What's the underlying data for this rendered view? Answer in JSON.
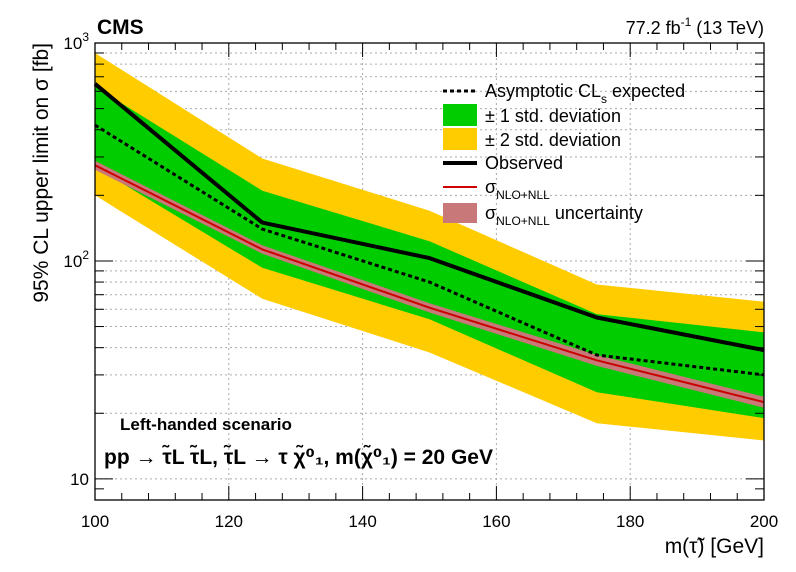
{
  "header": {
    "experiment": "CMS",
    "lumi_value": "77.2 fb",
    "lumi_exp": "-1",
    "energy": "(13 TeV)"
  },
  "chart_data": {
    "type": "line",
    "title": "",
    "xlabel": "m(τ̃) [GeV]",
    "ylabel": "95% CL upper limit on σ [fb]",
    "xlim": [
      100,
      200
    ],
    "ylim": [
      8,
      1000
    ],
    "yscale": "log",
    "grid": true,
    "legend_position": "top-right",
    "x_ticks": [
      "100",
      "120",
      "140",
      "160",
      "180",
      "200"
    ],
    "y_ticks": [
      {
        "mantissa": "10",
        "exp": ""
      },
      {
        "mantissa": "10",
        "exp": "2"
      },
      {
        "mantissa": "10",
        "exp": "3"
      }
    ],
    "x": [
      100,
      125,
      150,
      175,
      200
    ],
    "series": [
      {
        "name": "Asymptotic CLs expected",
        "values": [
          420,
          140,
          80,
          37,
          30
        ]
      },
      {
        "name": "± 1 std. deviation",
        "lower": [
          270,
          93,
          54,
          25,
          19
        ],
        "upper": [
          630,
          210,
          123,
          57,
          47
        ]
      },
      {
        "name": "± 2 std. deviation",
        "lower": [
          200,
          67,
          38,
          18,
          15
        ],
        "upper": [
          900,
          295,
          170,
          78,
          65
        ]
      },
      {
        "name": "Observed",
        "values": [
          650,
          150,
          103,
          55,
          39
        ]
      },
      {
        "name": "σ NLO+NLL",
        "values": [
          275,
          113,
          61,
          35,
          22.5
        ]
      },
      {
        "name": "σ NLO+NLL uncertainty",
        "lower": [
          262,
          108,
          58,
          33,
          21.2
        ],
        "upper": [
          288,
          118,
          64,
          37,
          23.8
        ]
      }
    ],
    "legend": {
      "expected": {
        "text": "Asymptotic CL",
        "sub": "s",
        "suffix": " expected"
      },
      "one_sigma": "± 1 std. deviation",
      "two_sigma": "± 2 std. deviation",
      "observed": "Observed",
      "xsec": {
        "text": "σ",
        "sub": "NLO+NLL"
      },
      "xsec_unc": {
        "text": "σ",
        "sub": "NLO+NLL",
        "suffix": " uncertainty"
      }
    },
    "annotations": {
      "line1": "Left-handed scenario",
      "line2": "pp → τ̃L τ̃L, τ̃L → τ χ̃⁰₁, m(χ̃⁰₁) = 20 GeV"
    }
  },
  "colors": {
    "two_sigma": "#ffcc00",
    "one_sigma": "#00cc00",
    "xsec_line": "#cc0000",
    "xsec_band": "#c87878",
    "observed": "#000000",
    "grid": "#aaaaaa"
  }
}
